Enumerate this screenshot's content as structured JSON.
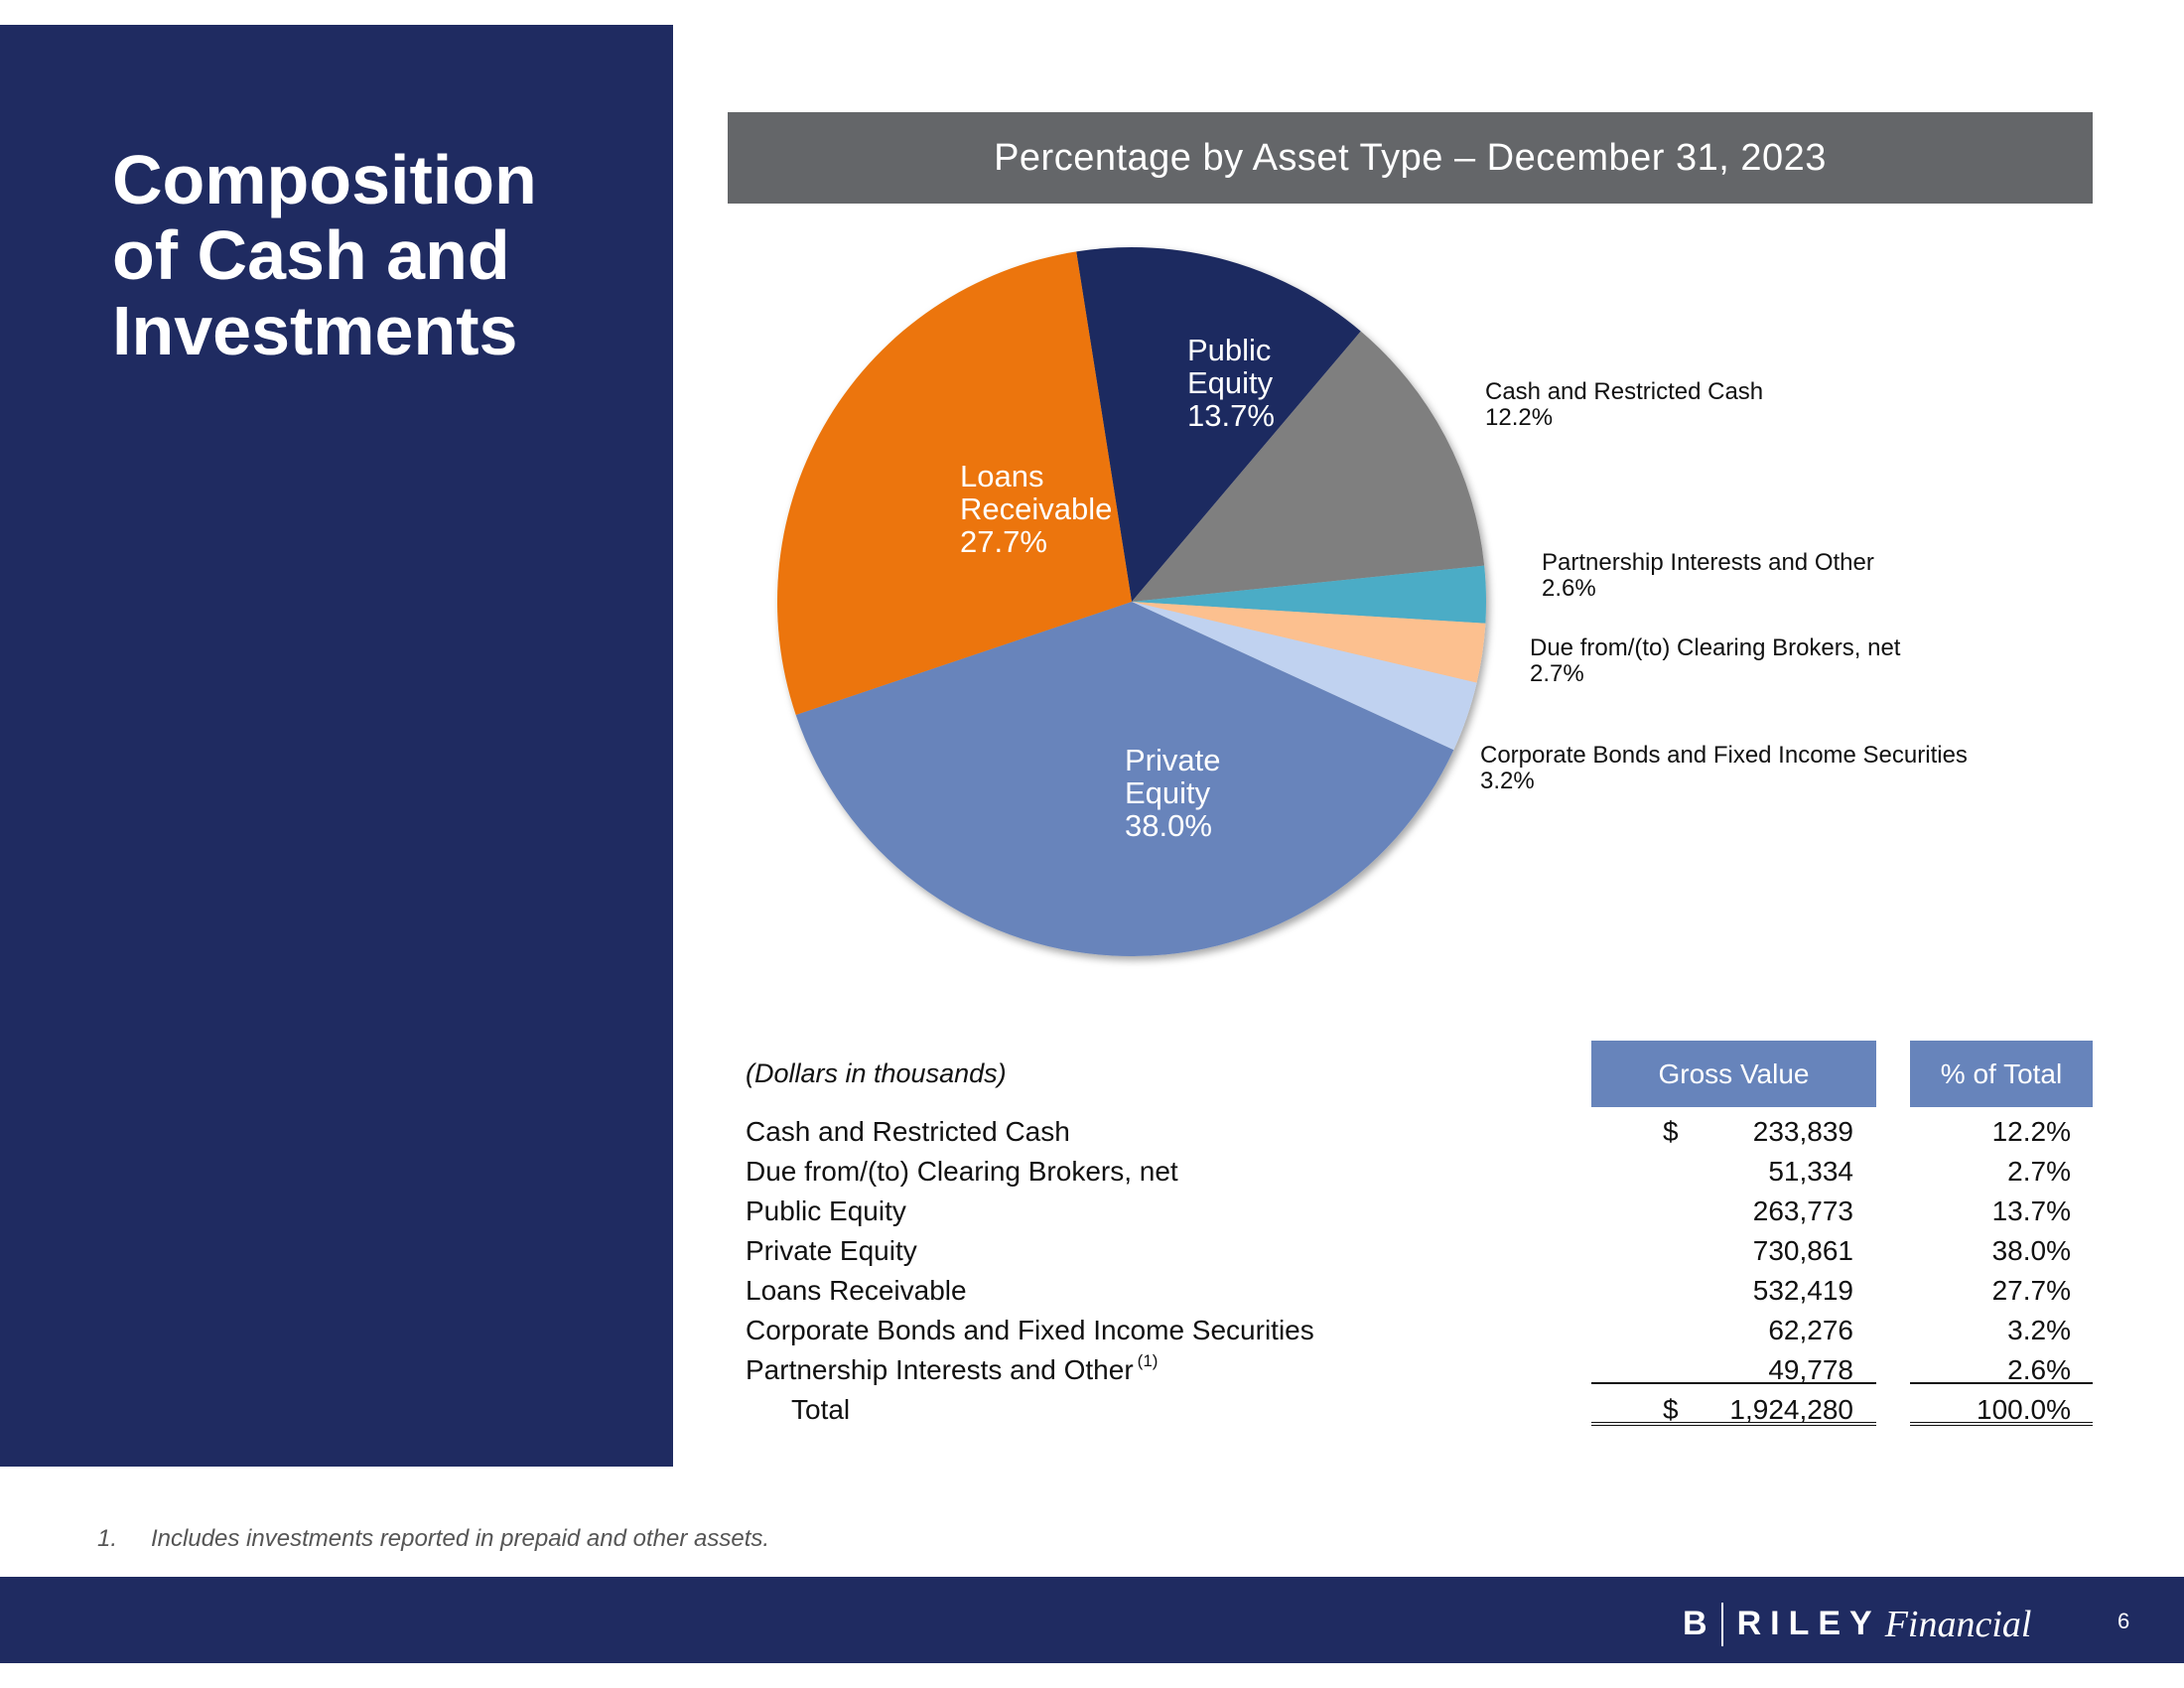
{
  "page": {
    "title": "Composition\nof Cash and\nInvestments",
    "footnote_number": "1.",
    "footnote_text": "Includes investments reported in prepaid and other assets.",
    "logo": {
      "b": "B",
      "riley": "RILEY",
      "financial": "Financial"
    },
    "page_number": "6"
  },
  "chart_data": {
    "type": "pie",
    "title": "Percentage by Asset Type – December 31, 2023",
    "unit": "%",
    "slices": [
      {
        "name": "Public Equity",
        "label_lines": [
          "Public",
          "Equity"
        ],
        "value": 13.7,
        "value_label": "13.7%",
        "color": "#1f2b61",
        "label_mode": "inside"
      },
      {
        "name": "Cash and Restricted Cash",
        "label_lines": [
          "Cash and Restricted Cash"
        ],
        "value": 12.2,
        "value_label": "12.2%",
        "color": "#7f7f7f",
        "label_mode": "outside"
      },
      {
        "name": "Partnership Interests and Other",
        "label_lines": [
          "Partnership Interests and Other"
        ],
        "value": 2.6,
        "value_label": "2.6%",
        "color": "#4bacc6",
        "label_mode": "outside"
      },
      {
        "name": "Due from/(to) Clearing Brokers, net",
        "label_lines": [
          "Due from/(to) Clearing Brokers, net"
        ],
        "value": 2.7,
        "value_label": "2.7%",
        "color": "#fcc08f",
        "label_mode": "outside"
      },
      {
        "name": "Corporate Bonds and Fixed Income Securities",
        "label_lines": [
          "Corporate Bonds and Fixed Income Securities"
        ],
        "value": 3.2,
        "value_label": "3.2%",
        "color": "#c0d2f0",
        "label_mode": "outside"
      },
      {
        "name": "Private Equity",
        "label_lines": [
          "Private",
          "Equity"
        ],
        "value": 38.0,
        "value_label": "38.0%",
        "color": "#6784bb",
        "label_mode": "inside"
      },
      {
        "name": "Loans Receivable",
        "label_lines": [
          "Loans",
          "Receivable"
        ],
        "value": 27.7,
        "value_label": "27.7%",
        "color": "#ec7407",
        "label_mode": "inside"
      }
    ]
  },
  "table": {
    "units_note": "(Dollars in thousands)",
    "col_gross": "Gross Value",
    "col_pct": "% of Total",
    "rows": [
      {
        "label": "Cash and Restricted Cash",
        "dollar": "$",
        "gross": "233,839",
        "pct": "12.2%",
        "note": ""
      },
      {
        "label": "Due from/(to) Clearing Brokers, net",
        "dollar": "",
        "gross": "51,334",
        "pct": "2.7%",
        "note": ""
      },
      {
        "label": "Public Equity",
        "dollar": "",
        "gross": "263,773",
        "pct": "13.7%",
        "note": ""
      },
      {
        "label": "Private Equity",
        "dollar": "",
        "gross": "730,861",
        "pct": "38.0%",
        "note": ""
      },
      {
        "label": "Loans Receivable",
        "dollar": "",
        "gross": "532,419",
        "pct": "27.7%",
        "note": ""
      },
      {
        "label": "Corporate Bonds and Fixed Income Securities",
        "dollar": "",
        "gross": "62,276",
        "pct": "3.2%",
        "note": ""
      },
      {
        "label": "Partnership Interests and Other",
        "dollar": "",
        "gross": "49,778",
        "pct": "2.6%",
        "note": "(1)"
      }
    ],
    "total": {
      "label": "Total",
      "dollar": "$",
      "gross": "1,924,280",
      "pct": "100.0%"
    }
  }
}
